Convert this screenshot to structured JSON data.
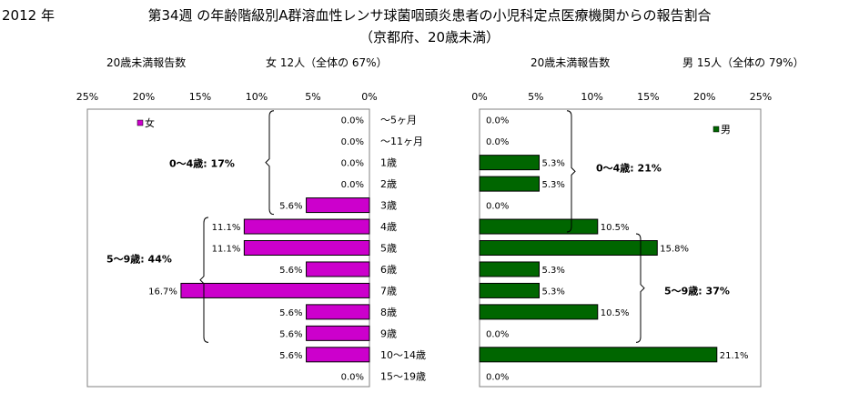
{
  "header": {
    "year": "2012 年",
    "title_line1": "第34週 の年齢階級別A群溶血性レンサ球菌咽頭炎患者の小児科定点医療機関からの報告割合",
    "title_line2": "（京都府、20歳未満）"
  },
  "chart_data": [
    {
      "type": "bar",
      "orientation": "horizontal",
      "direction": "right-to-left",
      "subtitle_left": "20歳未満報告数",
      "subtitle_right": "女 12人（全体の 67%）",
      "legend": "女",
      "legend_position": "top-left",
      "color": "#cc00cc",
      "categories": [
        "～5ヶ月",
        "～11ヶ月",
        "1歳",
        "2歳",
        "3歳",
        "4歳",
        "5歳",
        "6歳",
        "7歳",
        "8歳",
        "9歳",
        "10～14歳",
        "15～19歳"
      ],
      "values": [
        0.0,
        0.0,
        0.0,
        0.0,
        5.6,
        11.1,
        11.1,
        5.6,
        16.7,
        5.6,
        5.6,
        5.6,
        0.0
      ],
      "value_labels": [
        "0.0%",
        "0.0%",
        "0.0%",
        "0.0%",
        "5.6%",
        "11.1%",
        "11.1%",
        "5.6%",
        "16.7%",
        "5.6%",
        "5.6%",
        "5.6%",
        "0.0%"
      ],
      "xlim": [
        0,
        25
      ],
      "ticks": [
        "25%",
        "20%",
        "15%",
        "10%",
        "5%",
        "0%"
      ],
      "annotations": [
        {
          "text": "0～4歳: 17%",
          "from_index": 0,
          "to_index": 4
        },
        {
          "text": "5～9歳: 44%",
          "from_index": 5,
          "to_index": 10
        }
      ]
    },
    {
      "type": "bar",
      "orientation": "horizontal",
      "direction": "left-to-right",
      "subtitle_left": "20歳未満報告数",
      "subtitle_right": "男 15人（全体の 79%）",
      "legend": "男",
      "legend_position": "top-right",
      "color": "#006600",
      "categories": [
        "～5ヶ月",
        "～11ヶ月",
        "1歳",
        "2歳",
        "3歳",
        "4歳",
        "5歳",
        "6歳",
        "7歳",
        "8歳",
        "9歳",
        "10～14歳",
        "15～19歳"
      ],
      "values": [
        0.0,
        0.0,
        5.3,
        5.3,
        0.0,
        10.5,
        15.8,
        5.3,
        5.3,
        10.5,
        0.0,
        21.1,
        0.0
      ],
      "value_labels": [
        "0.0%",
        "0.0%",
        "5.3%",
        "5.3%",
        "0.0%",
        "10.5%",
        "15.8%",
        "5.3%",
        "5.3%",
        "10.5%",
        "0.0%",
        "21.1%",
        "0.0%"
      ],
      "xlim": [
        0,
        25
      ],
      "ticks": [
        "0%",
        "5%",
        "10%",
        "15%",
        "20%",
        "25%"
      ],
      "annotations": [
        {
          "text": "0～4歳: 21%",
          "from_index": 0,
          "to_index": 4
        },
        {
          "text": "5～9歳: 37%",
          "from_index": 5,
          "to_index": 10
        }
      ]
    }
  ]
}
